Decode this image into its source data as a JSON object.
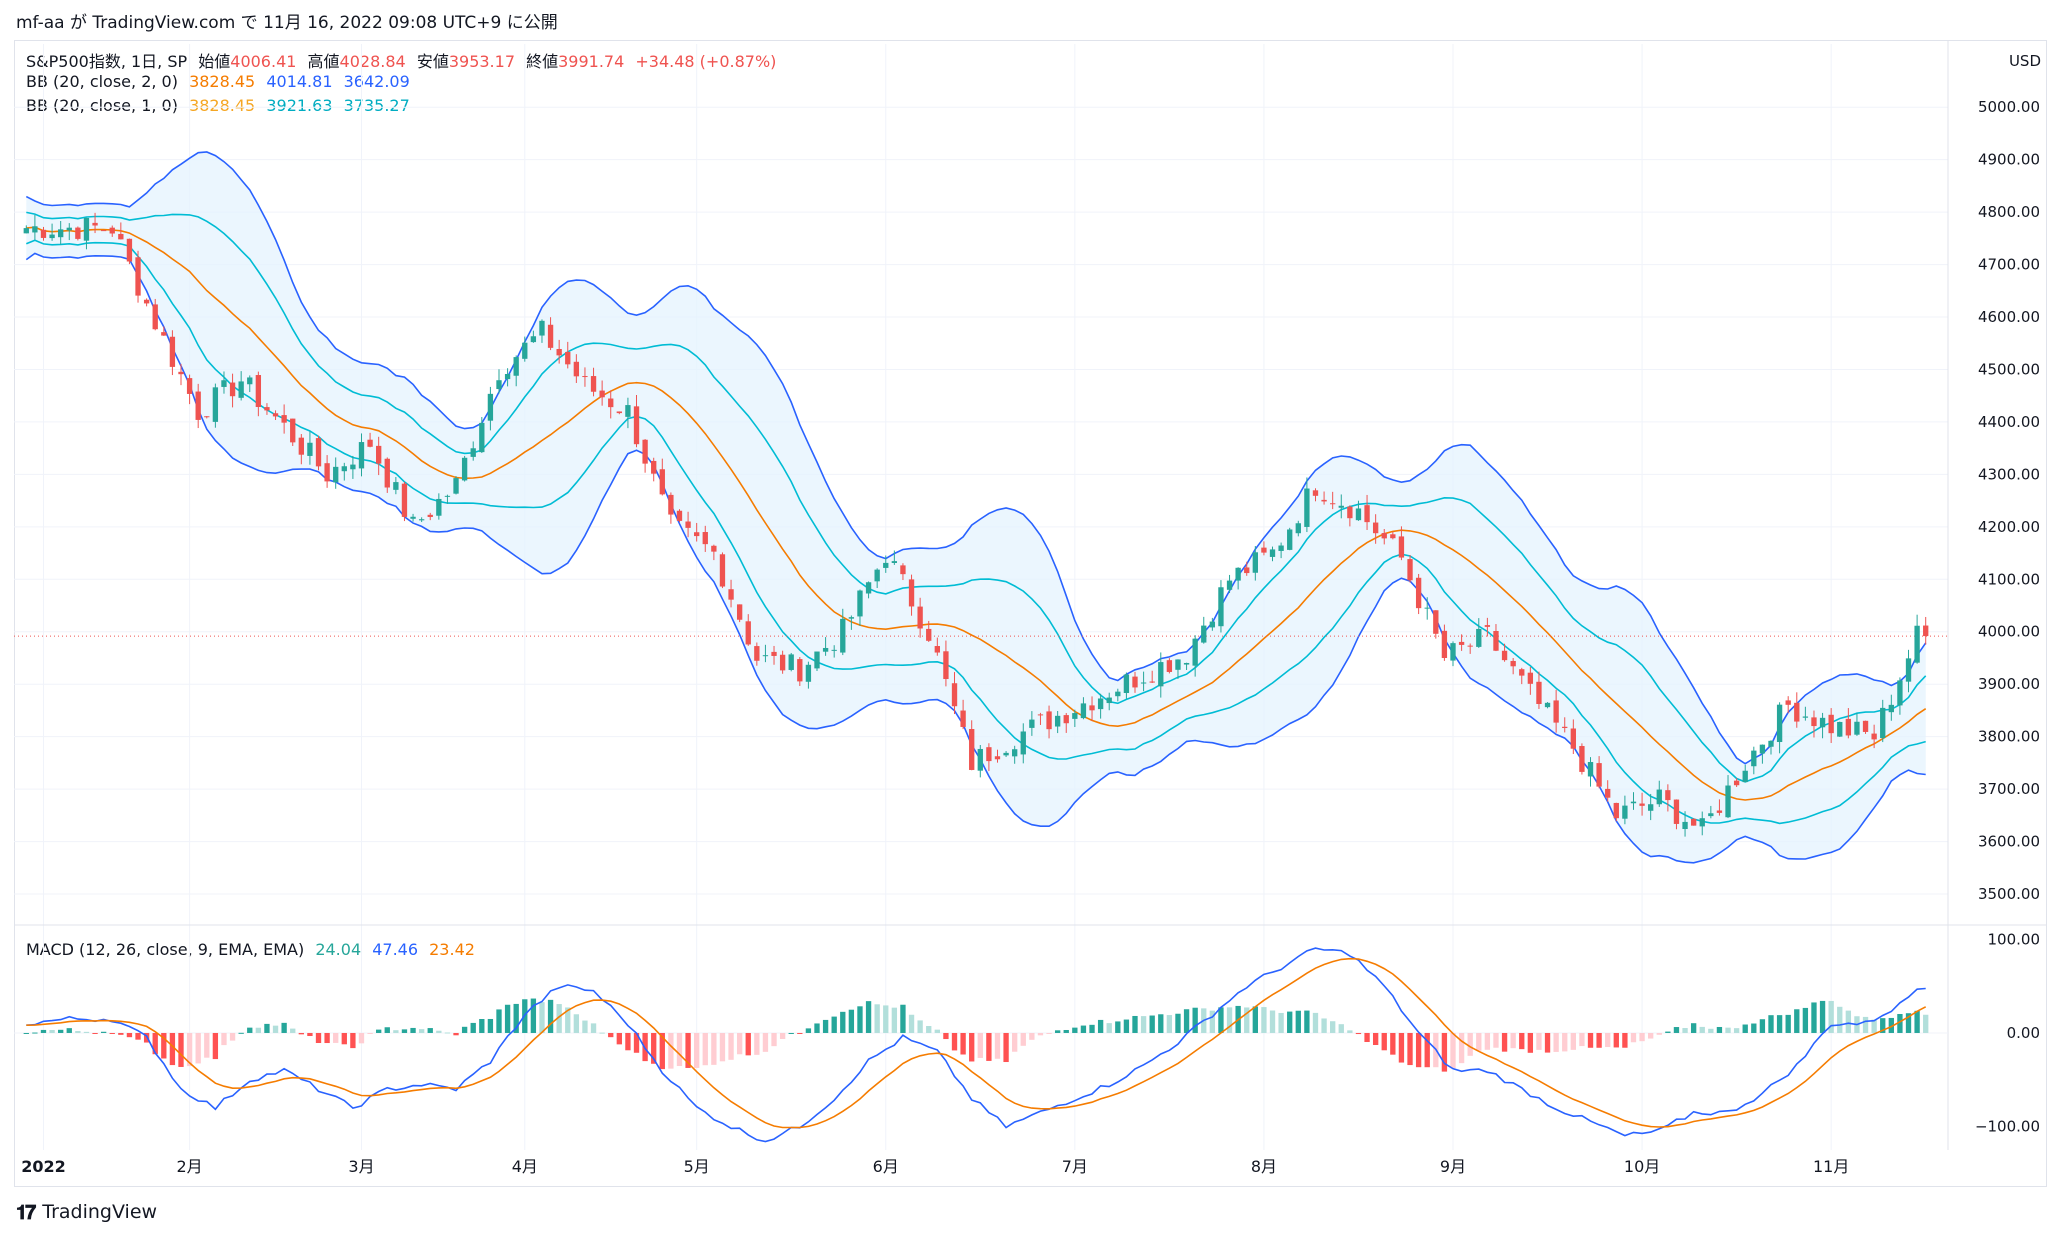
{
  "header": {
    "published": "mf-aa が TradingView.com で 11月 16, 2022 09:08 UTC+9 に公開"
  },
  "legend": {
    "symbol": "S&P500指数, 1日, SP",
    "open_label": "始値",
    "open": "4006.41",
    "high_label": "高値",
    "high": "4028.84",
    "low_label": "安値",
    "low": "3953.17",
    "close_label": "終値",
    "close": "3991.74",
    "change": "+34.48 (+0.87%)",
    "bb2_label": "BB (20, close, 2, 0)",
    "bb2_mid": "3828.45",
    "bb2_up": "4014.81",
    "bb2_low": "3642.09",
    "bb1_label": "BB (20, close, 1, 0)",
    "bb1_mid": "3828.45",
    "bb1_up": "3921.63",
    "bb1_low": "3735.27",
    "macd_label": "MACD (12, 26, close, 9, EMA, EMA)",
    "macd_hist": "24.04",
    "macd_line": "47.46",
    "macd_signal": "23.42"
  },
  "currency": "USD",
  "footer": {
    "brand": "TradingView"
  },
  "colors": {
    "up": "#26a69a",
    "down": "#ef5350",
    "bb_mid": "#f57c00",
    "bb2": "#2962ff",
    "bb1": "#00bcd4",
    "fill": "#e3f2fd",
    "macd": "#2962ff",
    "signal": "#f57c00",
    "hist_up": "#26a69a",
    "hist_up_light": "#b2dfdb",
    "hist_down": "#ff5252",
    "hist_down_light": "#ffcdd2"
  },
  "chart_data": [
    {
      "type": "candlestick",
      "title": "S&P500指数, 1日, SP",
      "y_ticks": [
        "5000.00",
        "4900.00",
        "4800.00",
        "4700.00",
        "4600.00",
        "4500.00",
        "4400.00",
        "4300.00",
        "4200.00",
        "4100.00",
        "4000.00",
        "3900.00",
        "3800.00",
        "3700.00",
        "3600.00",
        "3500.00"
      ],
      "ylim": [
        3460,
        5090
      ],
      "x_ticks": [
        "2022",
        "2月",
        "3月",
        "4月",
        "5月",
        "6月",
        "7月",
        "8月",
        "9月",
        "10月",
        "11月"
      ],
      "x_tick_days": [
        2,
        19,
        39,
        58,
        78,
        100,
        122,
        144,
        166,
        188,
        210
      ],
      "last_price": 3991.74,
      "close_approx": [
        {
          "day": 0,
          "close": 4770
        },
        {
          "day": 10,
          "close": 4770
        },
        {
          "day": 15,
          "close": 4590
        },
        {
          "day": 20,
          "close": 4420
        },
        {
          "day": 25,
          "close": 4480
        },
        {
          "day": 30,
          "close": 4390
        },
        {
          "day": 35,
          "close": 4300
        },
        {
          "day": 40,
          "close": 4360
        },
        {
          "day": 45,
          "close": 4200
        },
        {
          "day": 50,
          "close": 4280
        },
        {
          "day": 55,
          "close": 4500
        },
        {
          "day": 60,
          "close": 4570
        },
        {
          "day": 65,
          "close": 4470
        },
        {
          "day": 70,
          "close": 4420
        },
        {
          "day": 75,
          "close": 4200
        },
        {
          "day": 80,
          "close": 4150
        },
        {
          "day": 85,
          "close": 3950
        },
        {
          "day": 90,
          "close": 3930
        },
        {
          "day": 95,
          "close": 4000
        },
        {
          "day": 100,
          "close": 4150
        },
        {
          "day": 105,
          "close": 4000
        },
        {
          "day": 110,
          "close": 3750
        },
        {
          "day": 115,
          "close": 3800
        },
        {
          "day": 120,
          "close": 3840
        },
        {
          "day": 125,
          "close": 3880
        },
        {
          "day": 130,
          "close": 3920
        },
        {
          "day": 135,
          "close": 3960
        },
        {
          "day": 140,
          "close": 4100
        },
        {
          "day": 145,
          "close": 4150
        },
        {
          "day": 150,
          "close": 4280
        },
        {
          "day": 155,
          "close": 4230
        },
        {
          "day": 160,
          "close": 4140
        },
        {
          "day": 165,
          "close": 3950
        },
        {
          "day": 170,
          "close": 3990
        },
        {
          "day": 175,
          "close": 3880
        },
        {
          "day": 180,
          "close": 3780
        },
        {
          "day": 185,
          "close": 3650
        },
        {
          "day": 190,
          "close": 3680
        },
        {
          "day": 195,
          "close": 3620
        },
        {
          "day": 200,
          "close": 3750
        },
        {
          "day": 205,
          "close": 3860
        },
        {
          "day": 210,
          "close": 3820
        },
        {
          "day": 215,
          "close": 3800
        },
        {
          "day": 220,
          "close": 3991.74
        }
      ]
    },
    {
      "type": "line",
      "title": "MACD (12, 26, close, 9, EMA, EMA)",
      "y_ticks": [
        "100.00",
        "0.00",
        "−100.00"
      ],
      "ylim": [
        -125,
        110
      ],
      "macd_approx": [
        {
          "day": 0,
          "v": 10
        },
        {
          "day": 5,
          "v": 15
        },
        {
          "day": 10,
          "v": 15
        },
        {
          "day": 14,
          "v": -5
        },
        {
          "day": 18,
          "v": -60
        },
        {
          "day": 22,
          "v": -80
        },
        {
          "day": 26,
          "v": -50
        },
        {
          "day": 30,
          "v": -40
        },
        {
          "day": 34,
          "v": -60
        },
        {
          "day": 38,
          "v": -80
        },
        {
          "day": 42,
          "v": -60
        },
        {
          "day": 46,
          "v": -55
        },
        {
          "day": 50,
          "v": -60
        },
        {
          "day": 54,
          "v": -30
        },
        {
          "day": 58,
          "v": 20
        },
        {
          "day": 62,
          "v": 50
        },
        {
          "day": 66,
          "v": 45
        },
        {
          "day": 70,
          "v": 10
        },
        {
          "day": 74,
          "v": -40
        },
        {
          "day": 78,
          "v": -80
        },
        {
          "day": 82,
          "v": -100
        },
        {
          "day": 86,
          "v": -115
        },
        {
          "day": 90,
          "v": -100
        },
        {
          "day": 94,
          "v": -70
        },
        {
          "day": 98,
          "v": -30
        },
        {
          "day": 102,
          "v": -5
        },
        {
          "day": 106,
          "v": -20
        },
        {
          "day": 110,
          "v": -70
        },
        {
          "day": 114,
          "v": -100
        },
        {
          "day": 118,
          "v": -85
        },
        {
          "day": 122,
          "v": -70
        },
        {
          "day": 126,
          "v": -55
        },
        {
          "day": 130,
          "v": -35
        },
        {
          "day": 134,
          "v": -10
        },
        {
          "day": 138,
          "v": 20
        },
        {
          "day": 142,
          "v": 50
        },
        {
          "day": 146,
          "v": 70
        },
        {
          "day": 150,
          "v": 90
        },
        {
          "day": 154,
          "v": 85
        },
        {
          "day": 158,
          "v": 50
        },
        {
          "day": 162,
          "v": 0
        },
        {
          "day": 166,
          "v": -40
        },
        {
          "day": 170,
          "v": -40
        },
        {
          "day": 174,
          "v": -60
        },
        {
          "day": 178,
          "v": -80
        },
        {
          "day": 182,
          "v": -95
        },
        {
          "day": 186,
          "v": -110
        },
        {
          "day": 190,
          "v": -105
        },
        {
          "day": 194,
          "v": -85
        },
        {
          "day": 198,
          "v": -85
        },
        {
          "day": 202,
          "v": -65
        },
        {
          "day": 206,
          "v": -35
        },
        {
          "day": 210,
          "v": 10
        },
        {
          "day": 214,
          "v": 10
        },
        {
          "day": 218,
          "v": 30
        },
        {
          "day": 220,
          "v": 47.46
        }
      ]
    }
  ]
}
